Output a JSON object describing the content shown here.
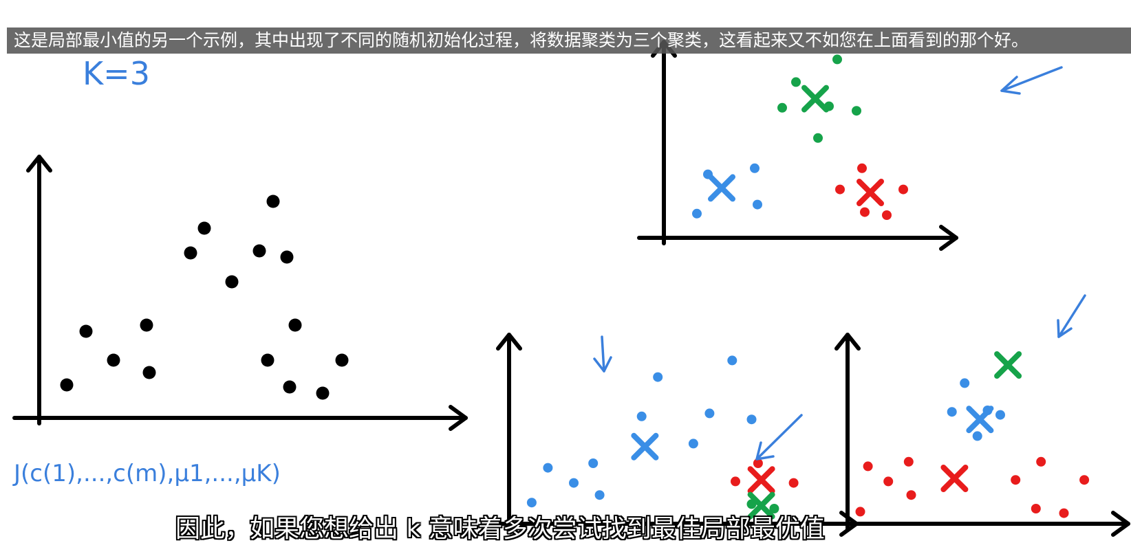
{
  "captions": {
    "top": "这是局部最小值的另一个示例，其中出现了不同的随机初始化过程，将数据聚类为三个聚类，这看起来又不如您在上面看到的那个好。",
    "bottom": "因此，如果您想给出 k 意味着多次尝试找到最佳局部最优值"
  },
  "annotations": {
    "k_label": "K=3",
    "cost_function": "J(c(1),...,c(m),μ1,...,μK)"
  },
  "colors": {
    "ink": "#000000",
    "blue": "#3a8ee6",
    "green": "#16a34a",
    "red": "#e81c1c",
    "annotation": "#3a7fdc"
  },
  "panels": [
    {
      "id": "unlabeled",
      "points": [
        {
          "x": 1.0,
          "y": 1.6,
          "c": "black"
        },
        {
          "x": 1.7,
          "y": 4.2,
          "c": "black"
        },
        {
          "x": 2.7,
          "y": 2.8,
          "c": "black"
        },
        {
          "x": 3.9,
          "y": 4.5,
          "c": "black"
        },
        {
          "x": 4.0,
          "y": 2.2,
          "c": "black"
        },
        {
          "x": 5.5,
          "y": 8.0,
          "c": "black"
        },
        {
          "x": 6.0,
          "y": 9.2,
          "c": "black"
        },
        {
          "x": 7.0,
          "y": 6.6,
          "c": "black"
        },
        {
          "x": 8.0,
          "y": 8.1,
          "c": "black"
        },
        {
          "x": 8.5,
          "y": 10.5,
          "c": "black"
        },
        {
          "x": 8.3,
          "y": 2.8,
          "c": "black"
        },
        {
          "x": 9.0,
          "y": 7.8,
          "c": "black"
        },
        {
          "x": 9.3,
          "y": 4.5,
          "c": "black"
        },
        {
          "x": 9.1,
          "y": 1.5,
          "c": "black"
        },
        {
          "x": 10.3,
          "y": 1.2,
          "c": "black"
        },
        {
          "x": 11.0,
          "y": 2.8,
          "c": "black"
        }
      ],
      "centroids": []
    },
    {
      "id": "good-clustering",
      "points": [
        {
          "x": 1.2,
          "y": 1.6,
          "c": "blue"
        },
        {
          "x": 1.6,
          "y": 4.2,
          "c": "blue"
        },
        {
          "x": 3.3,
          "y": 4.6,
          "c": "blue"
        },
        {
          "x": 3.4,
          "y": 2.2,
          "c": "blue"
        },
        {
          "x": 4.3,
          "y": 8.6,
          "c": "green"
        },
        {
          "x": 4.8,
          "y": 10.3,
          "c": "green"
        },
        {
          "x": 5.6,
          "y": 6.6,
          "c": "green"
        },
        {
          "x": 6.0,
          "y": 8.7,
          "c": "green"
        },
        {
          "x": 6.3,
          "y": 11.8,
          "c": "green"
        },
        {
          "x": 7.0,
          "y": 8.4,
          "c": "green"
        },
        {
          "x": 7.2,
          "y": 4.6,
          "c": "red"
        },
        {
          "x": 7.3,
          "y": 1.7,
          "c": "red"
        },
        {
          "x": 6.4,
          "y": 3.2,
          "c": "red"
        },
        {
          "x": 8.1,
          "y": 1.5,
          "c": "red"
        },
        {
          "x": 8.7,
          "y": 3.2,
          "c": "red"
        }
      ],
      "centroids": [
        {
          "x": 2.1,
          "y": 3.3,
          "c": "blue"
        },
        {
          "x": 5.5,
          "y": 9.2,
          "c": "green"
        },
        {
          "x": 7.5,
          "y": 3.0,
          "c": "red"
        }
      ]
    },
    {
      "id": "bad-clustering-1",
      "points": [
        {
          "x": 0.7,
          "y": 1.4,
          "c": "blue"
        },
        {
          "x": 1.2,
          "y": 3.7,
          "c": "blue"
        },
        {
          "x": 2.0,
          "y": 2.7,
          "c": "blue"
        },
        {
          "x": 2.8,
          "y": 1.9,
          "c": "blue"
        },
        {
          "x": 2.6,
          "y": 4.0,
          "c": "blue"
        },
        {
          "x": 4.1,
          "y": 7.1,
          "c": "blue"
        },
        {
          "x": 4.6,
          "y": 9.7,
          "c": "blue"
        },
        {
          "x": 5.7,
          "y": 5.3,
          "c": "blue"
        },
        {
          "x": 6.2,
          "y": 7.3,
          "c": "blue"
        },
        {
          "x": 6.9,
          "y": 10.8,
          "c": "blue"
        },
        {
          "x": 7.5,
          "y": 6.9,
          "c": "blue"
        },
        {
          "x": 7.0,
          "y": 2.8,
          "c": "red"
        },
        {
          "x": 7.7,
          "y": 4.0,
          "c": "red"
        },
        {
          "x": 8.8,
          "y": 2.7,
          "c": "red"
        },
        {
          "x": 7.5,
          "y": 1.3,
          "c": "green"
        },
        {
          "x": 8.2,
          "y": 1.0,
          "c": "green"
        }
      ],
      "centroids": [
        {
          "x": 4.2,
          "y": 5.1,
          "c": "blue"
        },
        {
          "x": 7.8,
          "y": 2.9,
          "c": "red"
        },
        {
          "x": 7.8,
          "y": 1.2,
          "c": "green"
        }
      ]
    },
    {
      "id": "bad-clustering-2",
      "points": [
        {
          "x": 0.5,
          "y": 0.8,
          "c": "red"
        },
        {
          "x": 0.8,
          "y": 3.8,
          "c": "red"
        },
        {
          "x": 1.6,
          "y": 2.8,
          "c": "red"
        },
        {
          "x": 2.4,
          "y": 4.1,
          "c": "red"
        },
        {
          "x": 2.5,
          "y": 1.9,
          "c": "red"
        },
        {
          "x": 6.6,
          "y": 2.9,
          "c": "red"
        },
        {
          "x": 7.4,
          "y": 1.0,
          "c": "red"
        },
        {
          "x": 7.6,
          "y": 4.1,
          "c": "red"
        },
        {
          "x": 8.5,
          "y": 0.7,
          "c": "red"
        },
        {
          "x": 9.3,
          "y": 2.9,
          "c": "red"
        },
        {
          "x": 4.1,
          "y": 7.4,
          "c": "blue"
        },
        {
          "x": 4.6,
          "y": 9.3,
          "c": "blue"
        },
        {
          "x": 5.1,
          "y": 5.8,
          "c": "blue"
        },
        {
          "x": 5.5,
          "y": 7.5,
          "c": "blue"
        },
        {
          "x": 6.0,
          "y": 7.2,
          "c": "blue"
        }
      ],
      "centroids": [
        {
          "x": 5.2,
          "y": 6.9,
          "c": "blue"
        },
        {
          "x": 6.3,
          "y": 10.5,
          "c": "green"
        },
        {
          "x": 4.2,
          "y": 3.0,
          "c": "red"
        }
      ]
    }
  ]
}
